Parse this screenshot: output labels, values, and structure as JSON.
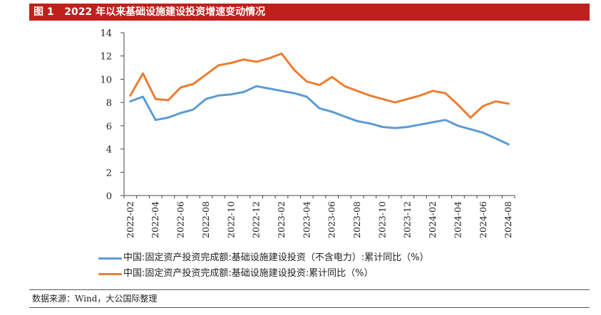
{
  "header": {
    "title": "图 1   2022 年以来基础设施建设投资增速变动情况",
    "bar_color": "#c0201b"
  },
  "source": {
    "text": "数据来源：Wind，大公国际整理"
  },
  "chart_data": {
    "type": "line",
    "title": "",
    "xlabel": "",
    "ylabel": "",
    "ylim": [
      0,
      14
    ],
    "y_ticks": [
      0,
      2,
      4,
      6,
      8,
      10,
      12,
      14
    ],
    "grid": false,
    "legend_position": "bottom",
    "x_tick_labels": [
      "2022-02",
      "2022-04",
      "2022-06",
      "2022-08",
      "2022-10",
      "2022-12",
      "2023-02",
      "2023-04",
      "2023-06",
      "2023-08",
      "2023-10",
      "2023-12",
      "2024-02",
      "2024-04",
      "2024-06",
      "2024-08"
    ],
    "x": [
      "2022-02",
      "2022-03",
      "2022-04",
      "2022-05",
      "2022-06",
      "2022-07",
      "2022-08",
      "2022-09",
      "2022-10",
      "2022-11",
      "2022-12",
      "2023-01",
      "2023-02",
      "2023-03",
      "2023-04",
      "2023-05",
      "2023-06",
      "2023-07",
      "2023-08",
      "2023-09",
      "2023-10",
      "2023-11",
      "2023-12",
      "2024-01",
      "2024-02",
      "2024-03",
      "2024-04",
      "2024-05",
      "2024-06",
      "2024-07",
      "2024-08"
    ],
    "series": [
      {
        "name": "中国:固定资产投资完成额:基础设施建设投资（不含电力）:累计同比（%）",
        "color": "#5b9bd5",
        "values": [
          8.1,
          8.5,
          6.5,
          6.7,
          7.1,
          7.4,
          8.3,
          8.6,
          8.7,
          8.9,
          9.4,
          9.2,
          9.0,
          8.8,
          8.5,
          7.5,
          7.2,
          6.8,
          6.4,
          6.2,
          5.9,
          5.8,
          5.9,
          6.1,
          6.3,
          6.5,
          6.0,
          5.7,
          5.4,
          4.9,
          4.4
        ]
      },
      {
        "name": "中国:固定资产投资完成额:基础设施建设投资:累计同比（%）",
        "color": "#ed7d31",
        "values": [
          8.6,
          10.5,
          8.3,
          8.2,
          9.3,
          9.6,
          10.4,
          11.2,
          11.4,
          11.7,
          11.5,
          11.8,
          12.2,
          10.8,
          9.8,
          9.5,
          10.2,
          9.4,
          9.0,
          8.6,
          8.3,
          8.0,
          8.3,
          8.6,
          9.0,
          8.8,
          7.8,
          6.7,
          7.7,
          8.1,
          7.9
        ]
      }
    ]
  }
}
